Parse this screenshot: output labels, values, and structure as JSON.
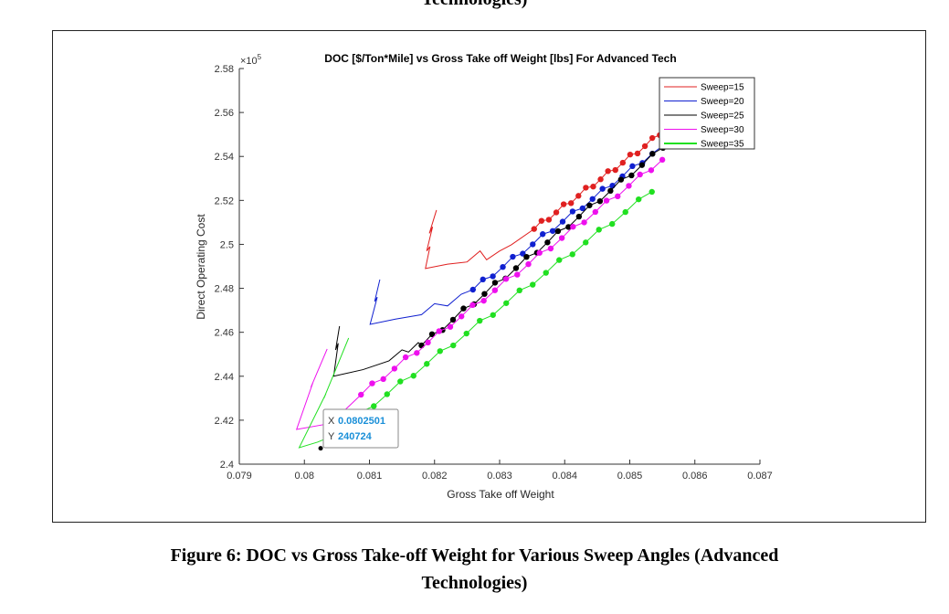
{
  "document": {
    "top_cut_text": "Technologies)",
    "caption_line1": "Figure 6: DOC vs Gross Take-off Weight for Various Sweep Angles (Advanced",
    "caption_line2": "Technologies)"
  },
  "chart_data": {
    "type": "line",
    "title": "DOC [$/Ton*Mile] vs  Gross Take off Weight [lbs] For Advanced Tech",
    "xlabel": "Gross Take off Weight",
    "ylabel": "Direct Operating Cost",
    "y_exponent": "×10",
    "y_exponent_power": "5",
    "xlim": [
      0.079,
      0.087
    ],
    "ylim": [
      2.4,
      2.58
    ],
    "xticks": [
      "0.079",
      "0.08",
      "0.081",
      "0.082",
      "0.083",
      "0.084",
      "0.085",
      "0.086",
      "0.087"
    ],
    "yticks": [
      "2.4",
      "2.42",
      "2.44",
      "2.46",
      "2.48",
      "2.5",
      "2.52",
      "2.54",
      "2.56",
      "2.58"
    ],
    "legend_position": "top-right",
    "grid": false,
    "series": [
      {
        "name": "Sweep=15",
        "color": "#e02020",
        "zigzag": [
          [
            0.08203,
            2.5156
          ],
          [
            0.08192,
            2.505
          ],
          [
            0.08197,
            2.508
          ],
          [
            0.08188,
            2.497
          ],
          [
            0.08193,
            2.499
          ],
          [
            0.08186,
            2.489
          ],
          [
            0.0822,
            2.491
          ],
          [
            0.0825,
            2.492
          ],
          [
            0.0827,
            2.497
          ],
          [
            0.0828,
            2.493
          ],
          [
            0.083,
            2.497
          ],
          [
            0.08318,
            2.4998
          ]
        ],
        "markers": {
          "start": [
            0.08353,
            2.507
          ],
          "end": [
            0.08546,
            2.5497
          ],
          "count": 18
        }
      },
      {
        "name": "Sweep=20",
        "color": "#1020d0",
        "zigzag": [
          [
            0.08116,
            2.484
          ],
          [
            0.08108,
            2.474
          ],
          [
            0.08112,
            2.476
          ],
          [
            0.08101,
            2.4636
          ],
          [
            0.0814,
            2.466
          ],
          [
            0.0818,
            2.468
          ],
          [
            0.082,
            2.473
          ],
          [
            0.0822,
            2.472
          ],
          [
            0.08241,
            2.4773
          ]
        ],
        "markers": {
          "start": [
            0.08259,
            2.4794
          ],
          "end": [
            0.0855,
            2.5447
          ],
          "count": 20
        }
      },
      {
        "name": "Sweep=25",
        "color": "#000000",
        "zigzag": [
          [
            0.08054,
            2.4628
          ],
          [
            0.08048,
            2.452
          ],
          [
            0.08052,
            2.455
          ],
          [
            0.08045,
            2.44
          ],
          [
            0.0809,
            2.443
          ],
          [
            0.0813,
            2.447
          ],
          [
            0.0815,
            2.452
          ],
          [
            0.0816,
            2.451
          ],
          [
            0.08175,
            2.4553
          ]
        ],
        "markers": {
          "start": [
            0.0818,
            2.454
          ],
          "end": [
            0.08551,
            2.5439
          ],
          "count": 24
        }
      },
      {
        "name": "Sweep=30",
        "color": "#ee10ee",
        "zigzag": [
          [
            0.08035,
            2.4524
          ],
          [
            0.0801,
            2.435
          ],
          [
            0.08013,
            2.437
          ],
          [
            0.07988,
            2.4158
          ],
          [
            0.0803,
            2.418
          ],
          [
            0.0806,
            2.424
          ],
          [
            0.08087,
            2.4316
          ]
        ],
        "markers": {
          "start": [
            0.08087,
            2.4316
          ],
          "end": [
            0.0855,
            2.5385
          ],
          "count": 28
        }
      },
      {
        "name": "Sweep=35",
        "color": "#20e020",
        "zigzag": [
          [
            0.08068,
            2.4574
          ],
          [
            0.0803,
            2.43
          ],
          [
            0.08033,
            2.432
          ],
          [
            0.07992,
            2.4075
          ],
          [
            0.0802,
            2.41
          ],
          [
            0.08045,
            2.413
          ],
          [
            0.08066,
            2.418
          ]
        ],
        "markers": {
          "start": [
            0.08066,
            2.418
          ],
          "end": [
            0.08534,
            2.5239
          ],
          "count": 24
        }
      }
    ],
    "datatip": {
      "x_label": "X",
      "x_value": "0.0802501",
      "y_label": "Y",
      "y_value": "240724",
      "point": [
        0.0802501,
        2.40724
      ]
    }
  }
}
